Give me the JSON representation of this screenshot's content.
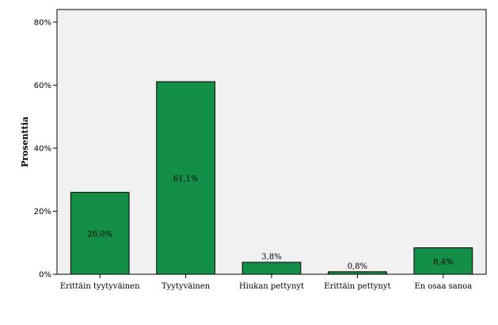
{
  "chart_data": {
    "type": "bar",
    "title": "",
    "xlabel": "",
    "ylabel": "Prosenttia",
    "ylim": [
      0,
      84
    ],
    "yticks": [
      0,
      20,
      40,
      60,
      80
    ],
    "ytick_labels": [
      "0%",
      "20%",
      "40%",
      "60%",
      "80%"
    ],
    "categories": [
      "Erittäin tyytyväinen",
      "Tyytyväinen",
      "Hiukan pettynyt",
      "Erittäin pettynyt",
      "En osaa sanoa"
    ],
    "values": [
      26.0,
      61.1,
      3.8,
      0.8,
      8.4
    ],
    "value_labels": [
      "26,0%",
      "61,1%",
      "3,8%",
      "0,8%",
      "8,4%"
    ],
    "grid": false,
    "colors": {
      "bar": "#138f47",
      "plot_bg": "#f0f0f0",
      "bar_stroke": "#000000"
    }
  }
}
